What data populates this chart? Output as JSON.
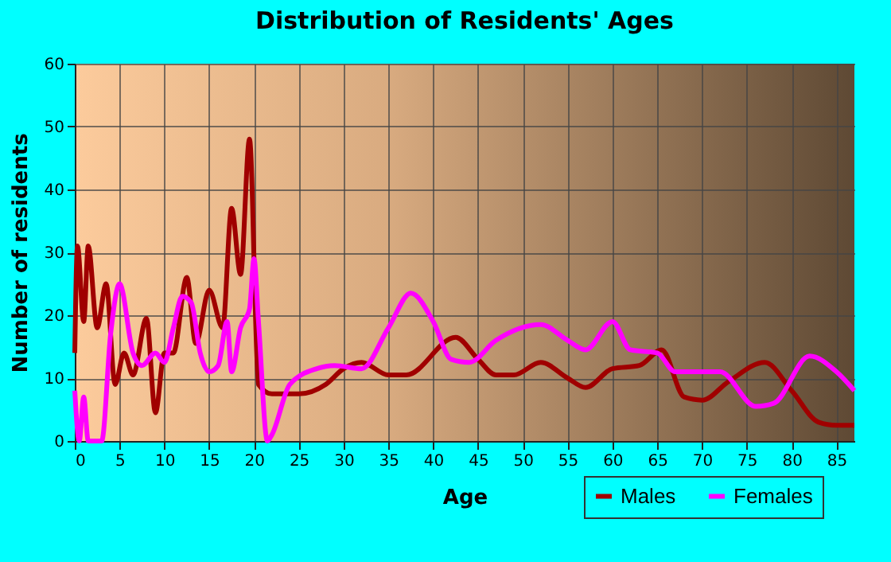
{
  "chart_data": {
    "type": "line",
    "title": "Distribution of Residents' Ages",
    "xlabel": "Age",
    "ylabel": "Number of residents",
    "xlim": [
      0,
      87
    ],
    "xticks": [
      0,
      5,
      10,
      15,
      20,
      25,
      30,
      35,
      40,
      45,
      50,
      55,
      60,
      65,
      70,
      75,
      80,
      85
    ],
    "ylim": [
      0,
      60
    ],
    "yticks": [
      0,
      10,
      20,
      30,
      40,
      50,
      60
    ],
    "grid": true,
    "legend": "bottom right",
    "marker": "none",
    "line_style": "solid",
    "series": [
      {
        "name": "Males",
        "color": "#a00000",
        "x": [
          0,
          0.3,
          1,
          1.5,
          2.5,
          3.5,
          4.5,
          5.5,
          6.5,
          8,
          9,
          10,
          11,
          12.5,
          13.5,
          15,
          16.5,
          17.5,
          18.5,
          19.5,
          20.5,
          22,
          25,
          28,
          30,
          32,
          35,
          37,
          42.5,
          45,
          47,
          49,
          52,
          55,
          57,
          60,
          63,
          65.5,
          68,
          70,
          73,
          77,
          80,
          83,
          85,
          87
        ],
        "values": [
          14,
          31,
          19,
          31,
          18,
          25,
          9,
          14,
          10.5,
          19.5,
          4.5,
          14,
          14,
          26,
          15.5,
          24,
          18,
          37,
          26.5,
          48,
          9,
          7.5,
          7.5,
          9,
          11.5,
          12.5,
          10.5,
          10.5,
          16.5,
          13,
          10.5,
          10.5,
          12.5,
          10,
          8.5,
          11.5,
          12,
          14.5,
          7,
          6.5,
          9.5,
          12.5,
          8,
          3,
          2.5,
          2.5
        ]
      },
      {
        "name": "Females",
        "color": "#ff00ff",
        "x": [
          0,
          0.5,
          1,
          1.5,
          3,
          4,
          5,
          6.5,
          7.5,
          9,
          10,
          11,
          12,
          13,
          14,
          15,
          16,
          17,
          17.5,
          18.5,
          19.5,
          20,
          20.5,
          21.5,
          22,
          24,
          27,
          29,
          32,
          35,
          37.5,
          40,
          42,
          44,
          47,
          52,
          55,
          57,
          60,
          62,
          65,
          67,
          70,
          72,
          76,
          78,
          82,
          85,
          87
        ],
        "values": [
          8,
          0,
          7,
          0,
          0,
          17,
          25,
          14,
          12,
          14,
          12.5,
          18,
          23,
          22,
          14,
          11,
          12,
          19,
          11,
          18,
          21,
          29,
          19,
          0,
          1,
          9,
          11.5,
          12,
          11.5,
          18,
          23.5,
          19,
          13,
          12.5,
          16,
          18.5,
          16,
          14.5,
          19,
          14.5,
          14,
          11,
          11,
          11,
          5.5,
          6,
          13.5,
          11,
          8
        ]
      }
    ]
  }
}
